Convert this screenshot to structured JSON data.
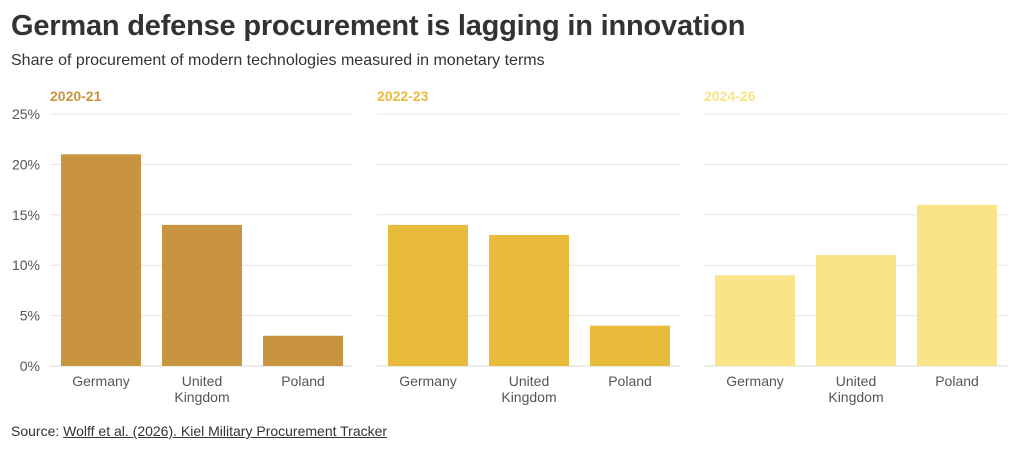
{
  "title": "German defense procurement is lagging in innovation",
  "subtitle": "Share of procurement of modern technologies measured in monetary terms",
  "source": {
    "prefix": "Source:",
    "link_text": "Wolff et al. (2026). Kiel Military Procurement Tracker"
  },
  "colors": {
    "2020-21": "#c8943f",
    "2022-23": "#e9bb3b",
    "2024-26": "#f9e488",
    "grid": "#e6e6e6",
    "axis_text": "#555555"
  },
  "chart_data": [
    {
      "type": "bar",
      "title": "2020-21",
      "categories": [
        "Germany",
        "United Kingdom",
        "Poland"
      ],
      "values": [
        21,
        14,
        3
      ],
      "ylim": [
        0,
        25
      ],
      "yticks": [
        "0%",
        "5%",
        "10%",
        "15%",
        "20%",
        "25%"
      ],
      "grid": true
    },
    {
      "type": "bar",
      "title": "2022-23",
      "categories": [
        "Germany",
        "United Kingdom",
        "Poland"
      ],
      "values": [
        14,
        13,
        4
      ],
      "ylim": [
        0,
        25
      ],
      "grid": true
    },
    {
      "type": "bar",
      "title": "2024-26",
      "categories": [
        "Germany",
        "United Kingdom",
        "Poland"
      ],
      "values": [
        9,
        11,
        16
      ],
      "ylim": [
        0,
        25
      ],
      "grid": true
    }
  ]
}
